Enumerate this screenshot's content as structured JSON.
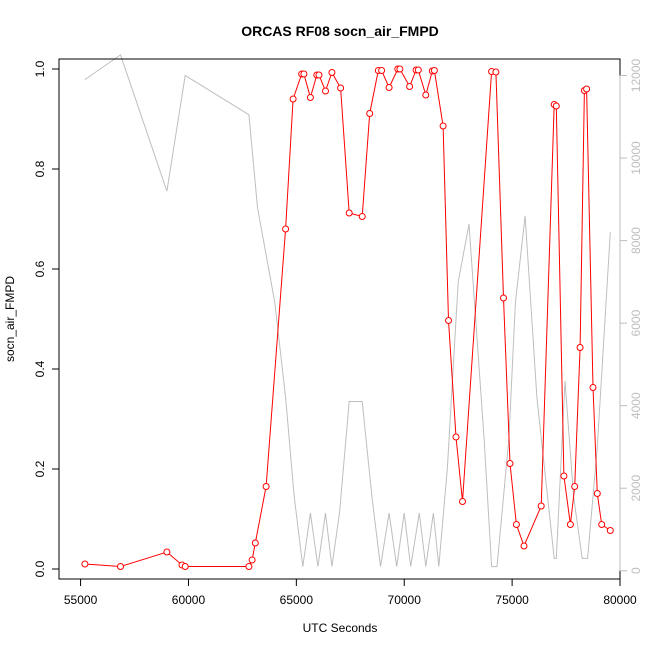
{
  "chart_data": {
    "type": "line",
    "title": "ORCAS RF08 socn_air_FMPD",
    "xlabel": "UTC Seconds",
    "ylabel": "socn_air_FMPD",
    "xlim": [
      54000,
      80000
    ],
    "ylim": [
      -0.02,
      1.02
    ],
    "y2lim": [
      -200,
      12400
    ],
    "x_ticks": [
      55000,
      60000,
      65000,
      70000,
      75000,
      80000
    ],
    "y_ticks": [
      0.0,
      0.2,
      0.4,
      0.6,
      0.8,
      1.0
    ],
    "y_tick_labels": [
      "0.0",
      "0.2",
      "0.4",
      "0.6",
      "0.8",
      "1.0"
    ],
    "y2_ticks": [
      0,
      2000,
      4000,
      6000,
      8000,
      10000,
      12000
    ],
    "grid": false,
    "legend": "none",
    "series": [
      {
        "axis": "left",
        "color": "#ff0000",
        "marker": "open-circle",
        "x": [
          55200,
          56850,
          59000,
          59700,
          59850,
          62800,
          62950,
          63100,
          63600,
          64500,
          64850,
          65250,
          65350,
          65650,
          65950,
          66050,
          66350,
          66650,
          67050,
          67450,
          68050,
          68400,
          68800,
          68950,
          69300,
          69700,
          69800,
          70250,
          70550,
          70650,
          71000,
          71300,
          71400,
          71800,
          72050,
          72400,
          72700,
          74050,
          74250,
          74600,
          74900,
          75200,
          75550,
          76350,
          76950,
          77050,
          77400,
          77700,
          77900,
          78150,
          78350,
          78450,
          78750,
          78950,
          79150,
          79550
        ],
        "y": [
          0.01,
          0.005,
          0.034,
          0.008,
          0.005,
          0.005,
          0.018,
          0.052,
          0.165,
          0.68,
          0.94,
          0.99,
          0.99,
          0.943,
          0.988,
          0.988,
          0.956,
          0.993,
          0.962,
          0.712,
          0.705,
          0.911,
          0.997,
          0.997,
          0.963,
          1.0,
          1.0,
          0.965,
          0.998,
          0.998,
          0.948,
          0.996,
          0.997,
          0.886,
          0.497,
          0.264,
          0.135,
          0.995,
          0.994,
          0.542,
          0.211,
          0.089,
          0.046,
          0.126,
          0.929,
          0.926,
          0.186,
          0.089,
          0.165,
          0.443,
          0.957,
          0.96,
          0.363,
          0.151,
          0.089,
          0.077
        ]
      },
      {
        "axis": "right",
        "color": "#bebebe",
        "marker": "none",
        "x": [
          55200,
          56850,
          59000,
          59850,
          62800,
          63200,
          64000,
          64500,
          64900,
          65300,
          65650,
          66000,
          66350,
          66650,
          67000,
          67450,
          68050,
          68500,
          68900,
          69300,
          69650,
          70000,
          70300,
          70700,
          71000,
          71350,
          71600,
          72000,
          72500,
          73000,
          73700,
          74050,
          74300,
          74850,
          75150,
          75600,
          76150,
          76950,
          77050,
          77450,
          77850,
          78250,
          78500,
          78950,
          79550
        ],
        "y": [
          11900,
          12500,
          9200,
          12000,
          11050,
          8800,
          6500,
          4200,
          1800,
          100,
          1400,
          100,
          1400,
          100,
          1400,
          4100,
          4100,
          1800,
          100,
          1400,
          100,
          1400,
          100,
          1400,
          100,
          1400,
          100,
          2500,
          7000,
          8400,
          3200,
          100,
          100,
          3200,
          6500,
          8600,
          4200,
          300,
          300,
          4600,
          1800,
          300,
          300,
          3000,
          8200
        ]
      }
    ]
  }
}
